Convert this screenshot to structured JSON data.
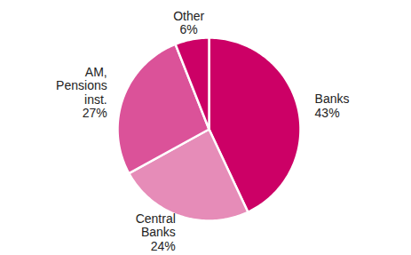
{
  "chart_data": {
    "type": "pie",
    "categories": [
      "Banks",
      "Central\nBanks",
      "AM,\nPensions\ninst.",
      "Other"
    ],
    "values": [
      43,
      24,
      27,
      6
    ],
    "value_labels": [
      "43%",
      "24%",
      "27%",
      "6%"
    ],
    "colors": [
      "#cc0066",
      "#e68cb8",
      "#db5299",
      "#cc0066"
    ],
    "data_labels": true
  }
}
